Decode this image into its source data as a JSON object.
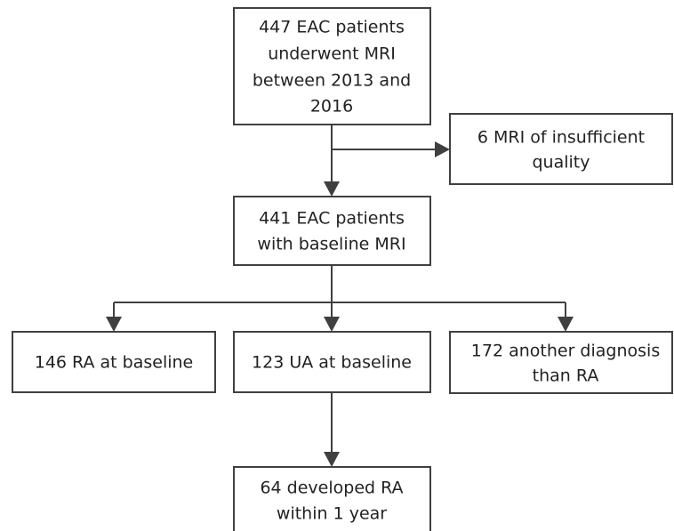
{
  "nodes": [
    {
      "lines": [
        "447 EAC patients",
        "underwent MRI",
        "between 2013 and",
        "2016"
      ]
    },
    {
      "lines": [
        "6 MRI of insufficient",
        "quality"
      ]
    },
    {
      "lines": [
        "441 EAC patients",
        "with baseline MRI"
      ]
    },
    {
      "lines": [
        "146 RA at baseline"
      ]
    },
    {
      "lines": [
        "123 UA at baseline"
      ]
    },
    {
      "lines": [
        "172 another diagnosis",
        "than RA"
      ]
    },
    {
      "lines": [
        "64 developed RA",
        "within 1 year"
      ]
    }
  ]
}
